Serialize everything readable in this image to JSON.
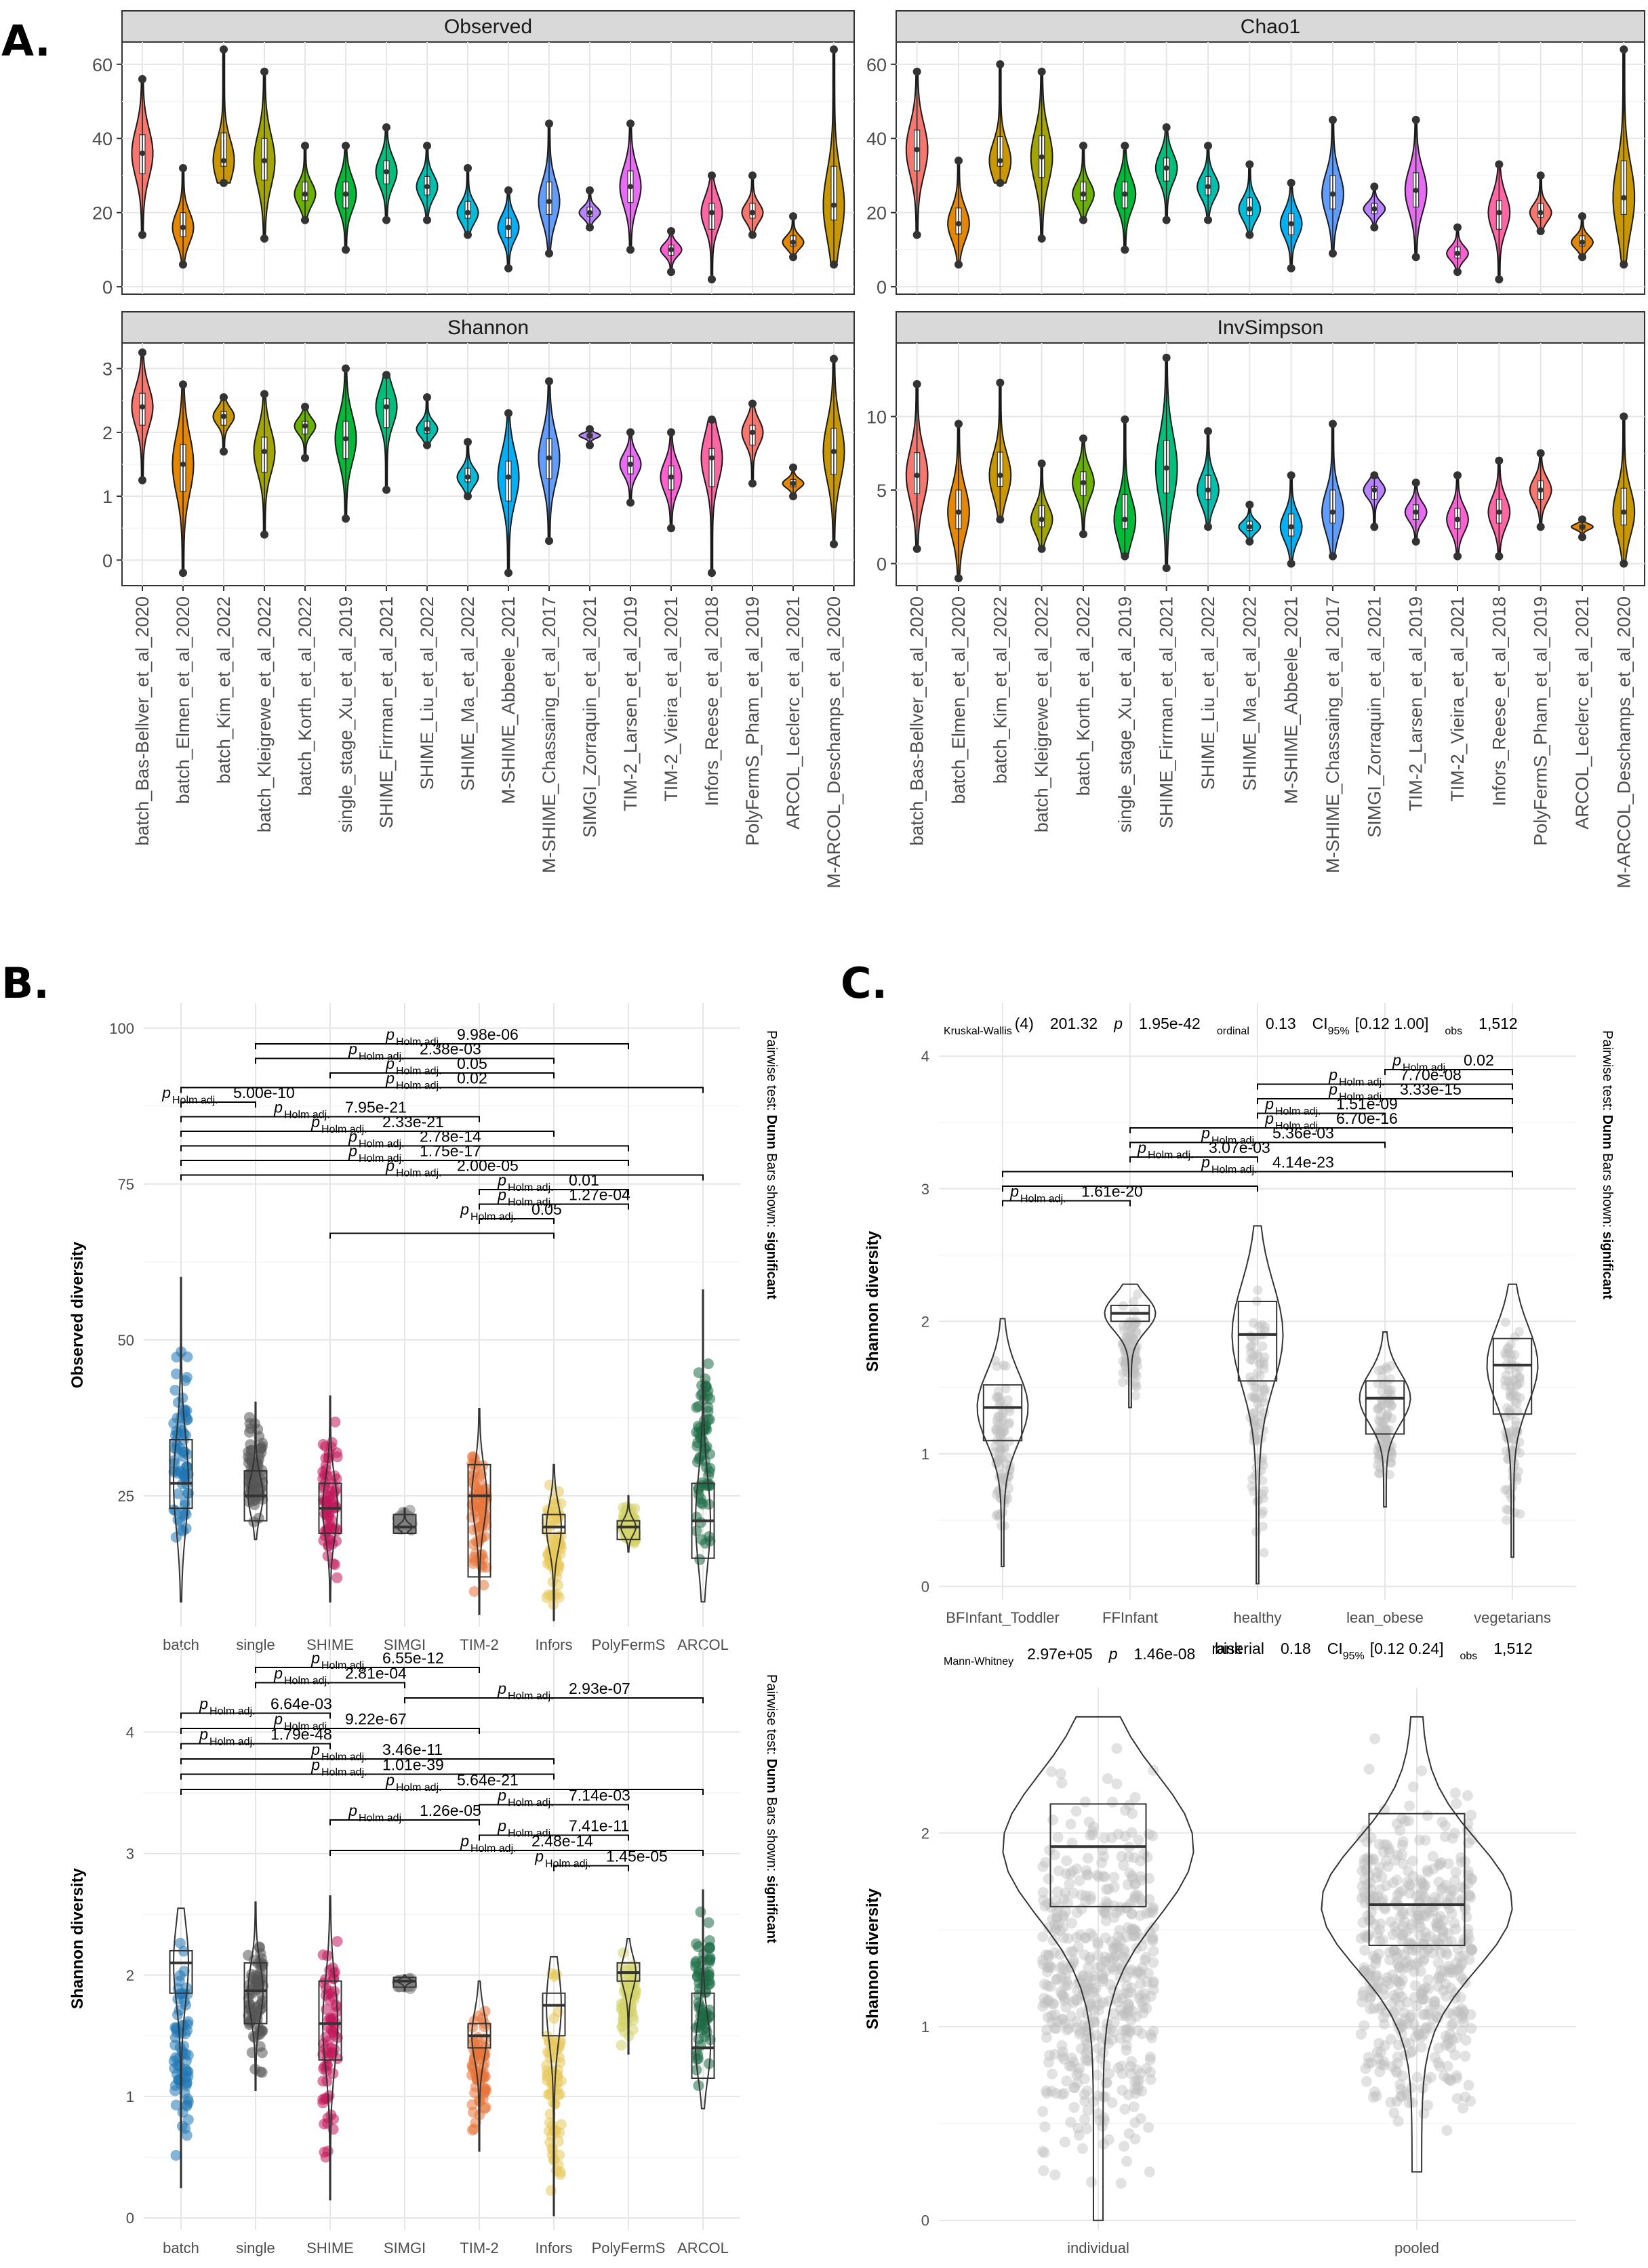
{
  "panels": {
    "A": "A.",
    "B": "B.",
    "C": "C."
  },
  "chart_data": [
    {
      "id": "A",
      "type": "violin",
      "facets": [
        "Observed",
        "Chao1",
        "Shannon",
        "InvSimpson"
      ],
      "categories": [
        "batch_Bas-Bellver_et_al_2020",
        "batch_Elmen_et_al_2020",
        "batch_Kim_et_al_2022",
        "batch_Kleigrewe_et_al_2022",
        "batch_Korth_et_al_2022",
        "single_stage_Xu_et_al_2019",
        "SHIME_Firrman_et_al_2021",
        "SHIME_Liu_et_al_2022",
        "SHIME_Ma_et_al_2022",
        "M-SHIME_Abbeele_2021",
        "M-SHIME_Chassaing_et_al_2017",
        "SIMGI_Zorraquin_et_al_2021",
        "TIM-2_Larsen_et_al_2019",
        "TIM-2_Vieira_et_al_2021",
        "Infors_Reese_et_al_2018",
        "PolyFermS_Pham_et_al_2019",
        "ARCOL_Leclerc_et_al_2021",
        "M-ARCOL_Deschamps_et_al_2020"
      ],
      "colors": [
        "#F8766D",
        "#E58700",
        "#C99800",
        "#A3A500",
        "#6BB100",
        "#00BA38",
        "#00BF7D",
        "#00C0AF",
        "#00BCD8",
        "#00B0F6",
        "#619CFF",
        "#B983FF",
        "#E76BF3",
        "#FD61D1",
        "#FF67A4",
        "#F8766D",
        "#E58700",
        "#C99800"
      ],
      "ticks": {
        "Observed": [
          0,
          20,
          40,
          60
        ],
        "Chao1": [
          0,
          20,
          40,
          60
        ],
        "Shannon": [
          0,
          1,
          2,
          3
        ],
        "InvSimpson": [
          0,
          5,
          10
        ]
      },
      "ylim": {
        "Observed": [
          -2,
          66
        ],
        "Chao1": [
          -2,
          66
        ],
        "Shannon": [
          -0.4,
          3.4
        ],
        "InvSimpson": [
          -1.5,
          15
        ]
      },
      "summary": {
        "Observed": [
          [
            14,
            36,
            56
          ],
          [
            6,
            16,
            32
          ],
          [
            28,
            34,
            64
          ],
          [
            13,
            34,
            58
          ],
          [
            18,
            25,
            38
          ],
          [
            10,
            25,
            38
          ],
          [
            18,
            31,
            43
          ],
          [
            18,
            27,
            38
          ],
          [
            14,
            20,
            32
          ],
          [
            5,
            16,
            26
          ],
          [
            9,
            23,
            44
          ],
          [
            16,
            20,
            26
          ],
          [
            10,
            27,
            44
          ],
          [
            4,
            10,
            15
          ],
          [
            2,
            20,
            30
          ],
          [
            14,
            20,
            30
          ],
          [
            8,
            12,
            19
          ],
          [
            6,
            22,
            64
          ]
        ],
        "Chao1": [
          [
            14,
            37,
            58
          ],
          [
            6,
            17,
            34
          ],
          [
            28,
            34,
            60
          ],
          [
            13,
            35,
            58
          ],
          [
            18,
            25,
            38
          ],
          [
            10,
            25,
            38
          ],
          [
            18,
            32,
            43
          ],
          [
            18,
            27,
            38
          ],
          [
            14,
            21,
            33
          ],
          [
            5,
            17,
            28
          ],
          [
            9,
            25,
            45
          ],
          [
            16,
            21,
            27
          ],
          [
            8,
            26,
            45
          ],
          [
            4,
            9,
            16
          ],
          [
            2,
            20,
            33
          ],
          [
            15,
            20,
            30
          ],
          [
            8,
            12,
            19
          ],
          [
            6,
            24,
            64
          ]
        ],
        "Shannon": [
          [
            1.25,
            2.4,
            3.25
          ],
          [
            -0.2,
            1.5,
            2.75
          ],
          [
            1.7,
            2.25,
            2.55
          ],
          [
            0.4,
            1.7,
            2.6
          ],
          [
            1.6,
            2.1,
            2.4
          ],
          [
            0.65,
            1.9,
            3.0
          ],
          [
            1.1,
            2.4,
            2.9
          ],
          [
            1.8,
            2.05,
            2.55
          ],
          [
            1.0,
            1.3,
            1.85
          ],
          [
            -0.2,
            1.3,
            2.3
          ],
          [
            0.3,
            1.6,
            2.8
          ],
          [
            1.8,
            1.95,
            2.05
          ],
          [
            0.9,
            1.5,
            2.0
          ],
          [
            0.5,
            1.3,
            2.0
          ],
          [
            -0.2,
            1.6,
            2.2
          ],
          [
            1.2,
            2.0,
            2.45
          ],
          [
            1.0,
            1.2,
            1.45
          ],
          [
            0.25,
            1.7,
            3.15
          ]
        ],
        "InvSimpson": [
          [
            1.0,
            6.0,
            12.2
          ],
          [
            -1.0,
            3.5,
            9.5
          ],
          [
            3.0,
            6.0,
            12.3
          ],
          [
            1.0,
            3.0,
            6.8
          ],
          [
            2.0,
            5.5,
            8.5
          ],
          [
            0.5,
            3.0,
            9.8
          ],
          [
            -0.3,
            6.5,
            14.0
          ],
          [
            2.5,
            5.0,
            9.0
          ],
          [
            1.5,
            2.5,
            4.0
          ],
          [
            0.0,
            2.5,
            6.0
          ],
          [
            0.5,
            3.5,
            9.5
          ],
          [
            2.5,
            5.0,
            6.0
          ],
          [
            1.5,
            3.5,
            5.5
          ],
          [
            0.5,
            3.0,
            6.0
          ],
          [
            0.5,
            3.5,
            7.0
          ],
          [
            2.5,
            5.0,
            7.5
          ],
          [
            1.8,
            2.5,
            3.0
          ],
          [
            0.0,
            3.5,
            10.0
          ]
        ]
      }
    },
    {
      "id": "B-top",
      "type": "violin-box",
      "categories": [
        "batch",
        "single",
        "SHIME",
        "SIMGI",
        "TIM-2",
        "Infors",
        "PolyFermS",
        "ARCOL"
      ],
      "colors": [
        "#1f77b4",
        "#555555",
        "#c2185b",
        "#808080",
        "#e8743b",
        "#e8c95a",
        "#d4d46a",
        "#1b6b45"
      ],
      "ylabel": "Observed diversity",
      "yticks": [
        25,
        50,
        75,
        100
      ],
      "ylim": [
        4,
        104
      ],
      "boxes": [
        [
          23,
          27,
          34,
          8,
          60
        ],
        [
          21,
          25,
          29,
          18,
          40
        ],
        [
          19,
          23,
          27,
          8,
          41
        ],
        [
          19,
          20,
          22,
          19,
          23
        ],
        [
          12,
          25,
          30,
          6,
          39
        ],
        [
          19,
          20,
          22,
          5,
          30
        ],
        [
          18,
          20,
          21,
          16,
          25
        ],
        [
          15,
          21,
          27,
          8,
          58
        ]
      ],
      "side_label": {
        "prefix": "Pairwise test: ",
        "test": "Dunn",
        "middle": " Bars shown: ",
        "shown": "significant"
      },
      "comparisons": [
        {
          "from": 1,
          "to": 6,
          "p": "9.98e-06"
        },
        {
          "from": 1,
          "to": 5,
          "p": "2.38e-03"
        },
        {
          "from": 2,
          "to": 5,
          "p": "0.05"
        },
        {
          "from": 0,
          "to": 7,
          "p": "0.02"
        },
        {
          "from": 0,
          "to": 1,
          "p": "5.00e-10"
        },
        {
          "from": 0,
          "to": 4,
          "p": "7.95e-21"
        },
        {
          "from": 0,
          "to": 5,
          "p": "2.33e-21"
        },
        {
          "from": 0,
          "to": 6,
          "p": "2.78e-14"
        },
        {
          "from": 0,
          "to": 6,
          "p": "1.75e-17"
        },
        {
          "from": 0,
          "to": 7,
          "p": "2.00e-05"
        },
        {
          "from": 4,
          "to": 6,
          "p": "0.01"
        },
        {
          "from": 4,
          "to": 6,
          "p": "1.27e-04"
        },
        {
          "from": 4,
          "to": 5,
          "p": "0.05"
        },
        {
          "from": 2,
          "to": 5,
          "p": ""
        }
      ]
    },
    {
      "id": "B-bottom",
      "type": "violin-box",
      "categories": [
        "batch",
        "single",
        "SHIME",
        "SIMGI",
        "TIM-2",
        "Infors",
        "PolyFermS",
        "ARCOL"
      ],
      "colors": [
        "#1f77b4",
        "#555555",
        "#c2185b",
        "#808080",
        "#e8743b",
        "#e8c95a",
        "#d4d46a",
        "#1b6b45"
      ],
      "ylabel": "Shannon diversity",
      "yticks": [
        0,
        1,
        2,
        3,
        4
      ],
      "ylim": [
        -0.1,
        4.7
      ],
      "boxes": [
        [
          1.85,
          2.1,
          2.2,
          0.25,
          2.55
        ],
        [
          1.6,
          1.87,
          2.1,
          1.05,
          2.6
        ],
        [
          1.3,
          1.6,
          1.95,
          0.15,
          2.65
        ],
        [
          1.9,
          1.95,
          1.98,
          1.87,
          2.0
        ],
        [
          1.4,
          1.5,
          1.6,
          0.55,
          1.95
        ],
        [
          1.5,
          1.75,
          1.85,
          0.02,
          2.15
        ],
        [
          1.95,
          2.02,
          2.1,
          1.35,
          2.3
        ],
        [
          1.15,
          1.4,
          1.85,
          0.9,
          2.7
        ]
      ],
      "side_label": {
        "prefix": "Pairwise test: ",
        "test": "Dunn",
        "middle": " Bars shown: ",
        "shown": "significant"
      },
      "comparisons": [
        {
          "from": 1,
          "to": 4,
          "p": "6.55e-12"
        },
        {
          "from": 1,
          "to": 3,
          "p": "2.81e-04"
        },
        {
          "from": 3,
          "to": 7,
          "p": "2.93e-07"
        },
        {
          "from": 0,
          "to": 2,
          "p": "6.64e-03"
        },
        {
          "from": 0,
          "to": 4,
          "p": "9.22e-67"
        },
        {
          "from": 0,
          "to": 2,
          "p": "1.79e-48"
        },
        {
          "from": 0,
          "to": 5,
          "p": "3.46e-11"
        },
        {
          "from": 0,
          "to": 5,
          "p": "1.01e-39"
        },
        {
          "from": 0,
          "to": 7,
          "p": "5.64e-21"
        },
        {
          "from": 4,
          "to": 6,
          "p": "7.14e-03"
        },
        {
          "from": 2,
          "to": 4,
          "p": "1.26e-05"
        },
        {
          "from": 4,
          "to": 6,
          "p": "7.41e-11"
        },
        {
          "from": 2,
          "to": 7,
          "p": "2.48e-14"
        },
        {
          "from": 5,
          "to": 6,
          "p": "1.45e-05"
        }
      ]
    },
    {
      "id": "C-top",
      "type": "violin-box",
      "categories": [
        "BFInfant_Toddler",
        "FFInfant",
        "healthy",
        "lean_obese",
        "vegetarians"
      ],
      "ylabel": "Shannon diversity",
      "yticks": [
        0,
        1,
        2,
        3,
        4
      ],
      "ylim": [
        -0.1,
        4.4
      ],
      "boxes": [
        [
          1.1,
          1.35,
          1.52,
          0.15,
          2.02
        ],
        [
          2.0,
          2.06,
          2.12,
          1.35,
          2.28
        ],
        [
          1.55,
          1.9,
          2.15,
          0.02,
          2.72
        ],
        [
          1.15,
          1.42,
          1.55,
          0.6,
          1.92
        ],
        [
          1.3,
          1.67,
          1.87,
          0.22,
          2.28
        ]
      ],
      "stat_header": {
        "chi_label": "Kruskal-Wallis",
        "df": "(4)",
        "chi": "201.32",
        "p_label": "p",
        "p": "1.95e-42",
        "eff_label": "ordinal",
        "eff": "0.13",
        "ci_label": "CI",
        "ci_sub": "95%",
        "ci": "[0.12  1.00]",
        "n_label": "obs",
        "n": "1,512"
      },
      "side_label": {
        "prefix": "Pairwise test: ",
        "test": "Dunn",
        "middle": " Bars shown: ",
        "shown": "significant"
      },
      "comparisons": [
        {
          "from": 3,
          "to": 4,
          "p": "0.02"
        },
        {
          "from": 2,
          "to": 4,
          "p": "7.70e-08"
        },
        {
          "from": 2,
          "to": 4,
          "p": "3.33e-15"
        },
        {
          "from": 2,
          "to": 3,
          "p": "1.51e-09"
        },
        {
          "from": 1,
          "to": 4,
          "p": "6.70e-16"
        },
        {
          "from": 1,
          "to": 3,
          "p": "5.36e-03"
        },
        {
          "from": 1,
          "to": 2,
          "p": "3.07e-03"
        },
        {
          "from": 0,
          "to": 4,
          "p": "4.14e-23"
        },
        {
          "from": 0,
          "to": 2,
          "p": ""
        },
        {
          "from": 0,
          "to": 1,
          "p": "1.61e-20"
        }
      ]
    },
    {
      "id": "C-bottom",
      "type": "violin-box",
      "categories": [
        "individual",
        "pooled"
      ],
      "ylabel": "Shannon diversity",
      "yticks": [
        0,
        1,
        2
      ],
      "ylim": [
        -0.05,
        2.75
      ],
      "boxes": [
        [
          1.62,
          1.93,
          2.15,
          0.0,
          2.6
        ],
        [
          1.42,
          1.63,
          2.1,
          0.25,
          2.6
        ]
      ],
      "stat_header": {
        "w_label": "Mann-Whitney",
        "w": "2.97e+05",
        "p_label": "p",
        "p": "1.46e-08",
        "eff_label": "biserial",
        "eff_sup": "rank",
        "eff": "0.18",
        "ci_label": "CI",
        "ci_sub": "95%",
        "ci": "[0.12  0.24]",
        "n_label": "obs",
        "n": "1,512"
      }
    }
  ],
  "labels": {
    "p_holm": "p",
    "p_holm_sub": "Holm  adj."
  }
}
